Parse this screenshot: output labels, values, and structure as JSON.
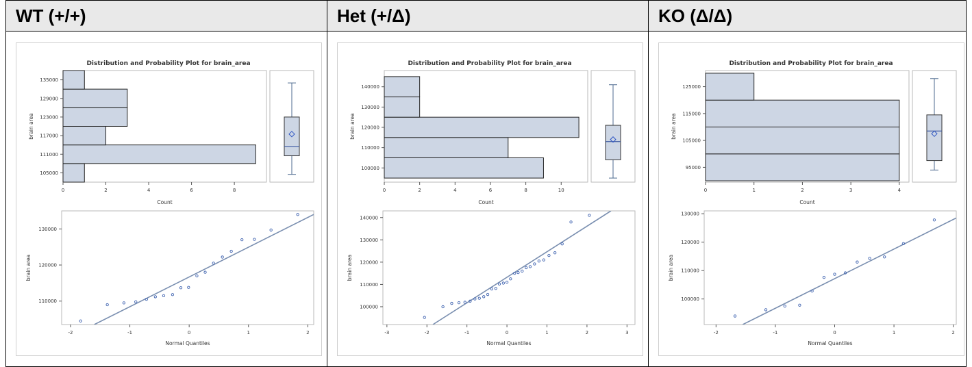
{
  "panels": [
    {
      "label": "WT (+/+)",
      "chart_data": {
        "type": "bar",
        "title": "Distribution and Probability Plot for brain_area",
        "histogram": {
          "orientation": "horizontal",
          "xlabel": "Count",
          "ylabel": "brain area",
          "xlim": [
            0,
            9.5
          ],
          "ylim": [
            102000,
            138000
          ],
          "xticks": [
            0,
            2,
            4,
            6,
            8
          ],
          "yticks": [
            105000,
            111000,
            117000,
            123000,
            129000,
            135000
          ],
          "bins": [
            {
              "low": 102000,
              "high": 108000,
              "count": 1
            },
            {
              "low": 108000,
              "high": 114000,
              "count": 9
            },
            {
              "low": 114000,
              "high": 120000,
              "count": 2
            },
            {
              "low": 120000,
              "high": 126000,
              "count": 3
            },
            {
              "low": 126000,
              "high": 132000,
              "count": 3
            },
            {
              "low": 132000,
              "high": 138000,
              "count": 1
            }
          ]
        },
        "boxplot": {
          "min": 104500,
          "q1": 110500,
          "median": 113500,
          "q3": 123000,
          "max": 134000,
          "mean": 117500
        },
        "qq": {
          "type": "scatter",
          "xlabel": "Normal Quantiles",
          "ylabel": "brain area",
          "xlim": [
            -2.15,
            2.1
          ],
          "ylim": [
            103500,
            135000
          ],
          "xticks": [
            -2,
            -1,
            0,
            1,
            2
          ],
          "yticks": [
            110000,
            120000,
            130000
          ],
          "fit_line": {
            "x1": -1.6,
            "y1": 103500,
            "x2": 2.1,
            "y2": 134000
          },
          "points": [
            [
              -1.83,
              104500
            ],
            [
              -1.38,
              109000
            ],
            [
              -1.1,
              109500
            ],
            [
              -0.9,
              109800
            ],
            [
              -0.72,
              110500
            ],
            [
              -0.57,
              111200
            ],
            [
              -0.43,
              111500
            ],
            [
              -0.28,
              111800
            ],
            [
              -0.14,
              113700
            ],
            [
              -0.01,
              113800
            ],
            [
              0.13,
              117000
            ],
            [
              0.27,
              118000
            ],
            [
              0.41,
              120500
            ],
            [
              0.56,
              122200
            ],
            [
              0.71,
              123800
            ],
            [
              0.89,
              127000
            ],
            [
              1.1,
              127100
            ],
            [
              1.38,
              129700
            ],
            [
              1.83,
              134000
            ]
          ]
        }
      }
    },
    {
      "label": "Het (+/Δ)",
      "chart_data": {
        "type": "bar",
        "title": "Distribution and Probability Plot for brain_area",
        "histogram": {
          "orientation": "horizontal",
          "xlabel": "Count",
          "ylabel": "brain area",
          "xlim": [
            0,
            11.5
          ],
          "ylim": [
            93000,
            148000
          ],
          "xticks": [
            0,
            2,
            4,
            6,
            8,
            10
          ],
          "yticks": [
            100000,
            110000,
            120000,
            130000,
            140000
          ],
          "bins": [
            {
              "low": 95000,
              "high": 105000,
              "count": 9
            },
            {
              "low": 105000,
              "high": 115000,
              "count": 7
            },
            {
              "low": 115000,
              "high": 125000,
              "count": 11
            },
            {
              "low": 125000,
              "high": 135000,
              "count": 2
            },
            {
              "low": 135000,
              "high": 145000,
              "count": 2
            }
          ]
        },
        "boxplot": {
          "min": 95000,
          "q1": 104000,
          "median": 113000,
          "q3": 121000,
          "max": 141000,
          "mean": 114000
        },
        "qq": {
          "type": "scatter",
          "xlabel": "Normal Quantiles",
          "ylabel": "brain area",
          "xlim": [
            -3.1,
            3.2
          ],
          "ylim": [
            92000,
            143000
          ],
          "xticks": [
            -3,
            -2,
            -1,
            0,
            1,
            2,
            3
          ],
          "yticks": [
            100000,
            110000,
            120000,
            130000,
            140000
          ],
          "fit_line": {
            "x1": -1.85,
            "y1": 92000,
            "x2": 2.6,
            "y2": 143000
          },
          "points": [
            [
              -2.06,
              95200
            ],
            [
              -1.6,
              100000
            ],
            [
              -1.38,
              101500
            ],
            [
              -1.2,
              101800
            ],
            [
              -1.05,
              102000
            ],
            [
              -0.92,
              102500
            ],
            [
              -0.8,
              103500
            ],
            [
              -0.69,
              103800
            ],
            [
              -0.58,
              104500
            ],
            [
              -0.48,
              105500
            ],
            [
              -0.38,
              108000
            ],
            [
              -0.28,
              108200
            ],
            [
              -0.19,
              110200
            ],
            [
              -0.09,
              110600
            ],
            [
              0,
              111000
            ],
            [
              0.09,
              112500
            ],
            [
              0.19,
              115000
            ],
            [
              0.28,
              115300
            ],
            [
              0.38,
              116000
            ],
            [
              0.48,
              117500
            ],
            [
              0.58,
              118000
            ],
            [
              0.69,
              119200
            ],
            [
              0.8,
              120500
            ],
            [
              0.92,
              121000
            ],
            [
              1.05,
              123000
            ],
            [
              1.2,
              124200
            ],
            [
              1.38,
              128200
            ],
            [
              1.6,
              138000
            ],
            [
              2.06,
              141000
            ]
          ]
        }
      }
    },
    {
      "label": "KO (Δ/Δ)",
      "chart_data": {
        "type": "bar",
        "title": "Distribution and Probability Plot for brain_area",
        "histogram": {
          "orientation": "horizontal",
          "xlabel": "Count",
          "ylabel": "brain area",
          "xlim": [
            0,
            4.2
          ],
          "ylim": [
            89500,
            131000
          ],
          "xticks": [
            0,
            1,
            2,
            3,
            4
          ],
          "yticks": [
            95000,
            105000,
            115000,
            125000
          ],
          "bins": [
            {
              "low": 90000,
              "high": 100000,
              "count": 4
            },
            {
              "low": 100000,
              "high": 110000,
              "count": 4
            },
            {
              "low": 110000,
              "high": 120000,
              "count": 4
            },
            {
              "low": 120000,
              "high": 130000,
              "count": 1
            }
          ]
        },
        "boxplot": {
          "min": 94000,
          "q1": 97500,
          "median": 108500,
          "q3": 114500,
          "max": 128000,
          "mean": 107500
        },
        "qq": {
          "type": "scatter",
          "xlabel": "Normal Quantiles",
          "ylabel": "brain area",
          "xlim": [
            -2.2,
            2.05
          ],
          "ylim": [
            91000,
            131000
          ],
          "xticks": [
            -2,
            -1,
            0,
            1,
            2
          ],
          "yticks": [
            100000,
            110000,
            120000,
            130000
          ],
          "fit_line": {
            "x1": -1.55,
            "y1": 91000,
            "x2": 2.05,
            "y2": 128500
          },
          "points": [
            [
              -1.68,
              94000
            ],
            [
              -1.16,
              96200
            ],
            [
              -0.84,
              97500
            ],
            [
              -0.59,
              97800
            ],
            [
              -0.38,
              102800
            ],
            [
              -0.18,
              107600
            ],
            [
              0,
              108700
            ],
            [
              0.18,
              109200
            ],
            [
              0.38,
              113000
            ],
            [
              0.59,
              114300
            ],
            [
              0.84,
              114800
            ],
            [
              1.16,
              119500
            ],
            [
              1.68,
              127800
            ]
          ]
        }
      }
    }
  ]
}
